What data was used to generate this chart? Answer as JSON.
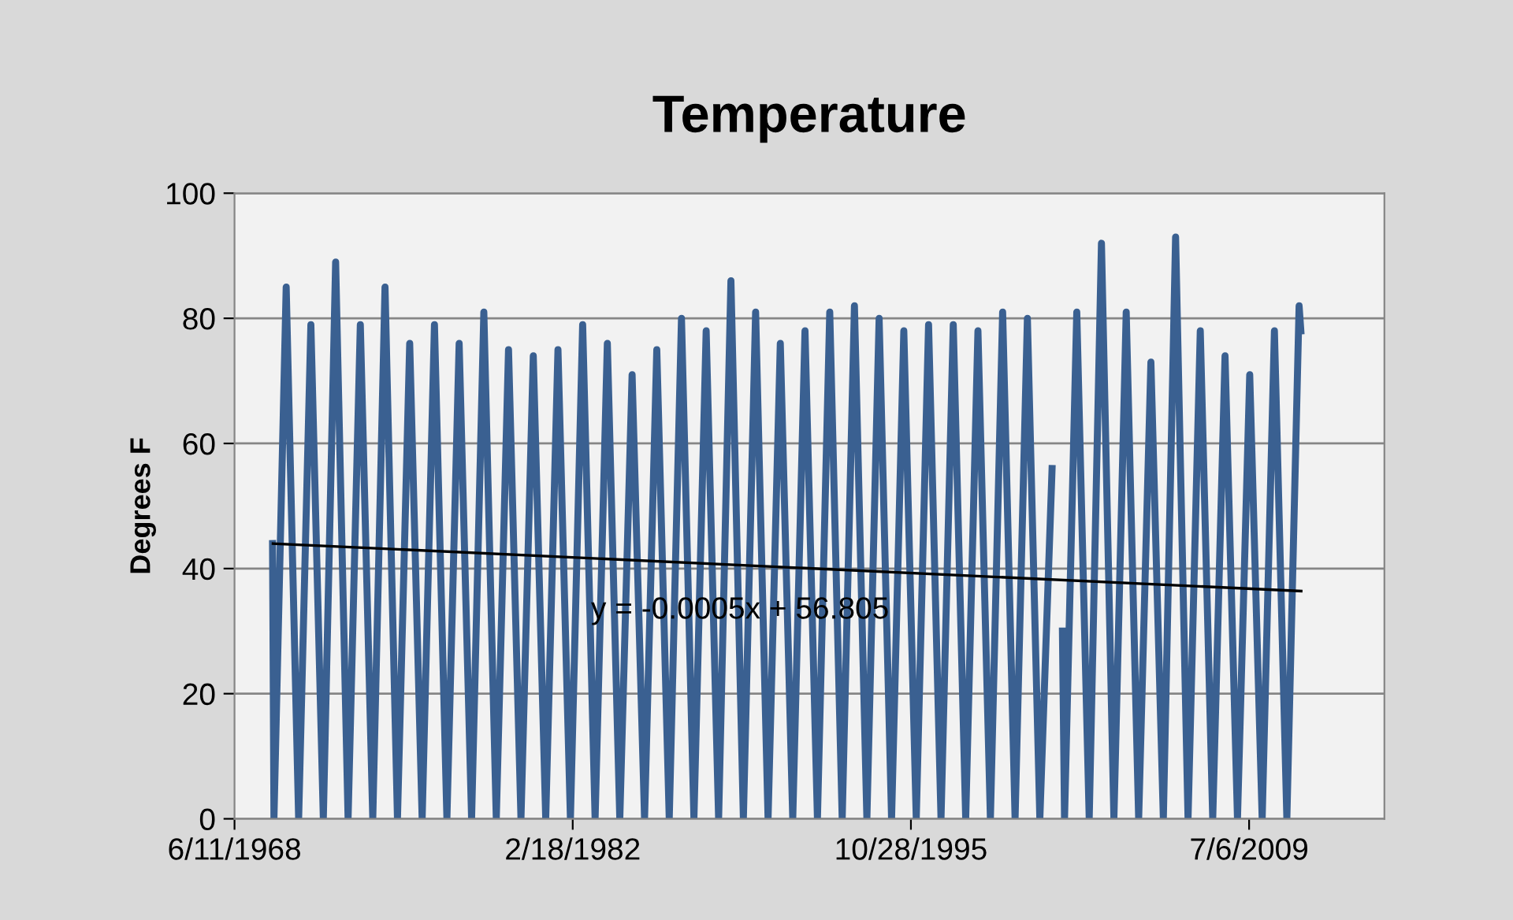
{
  "chart_data": {
    "type": "line",
    "title": "Temperature",
    "ylabel": "Degrees F",
    "xlim": [
      "1968-06-11",
      "2014-12-27"
    ],
    "xticks": [
      {
        "value": "1968-06-11",
        "label": "6/11/1968"
      },
      {
        "value": "1982-02-18",
        "label": "2/18/1982"
      },
      {
        "value": "1995-10-28",
        "label": "10/28/1995"
      },
      {
        "value": "2009-07-06",
        "label": "7/6/2009"
      }
    ],
    "ylim": [
      0,
      100
    ],
    "yticks": [
      0,
      20,
      40,
      60,
      80,
      100
    ],
    "grid": "y",
    "legend": false,
    "marker": "none",
    "line_style": "solid",
    "series": [
      {
        "color": "#3a6091",
        "x": [
          "1969-12-25",
          "1970-01-15",
          "1970-07-15",
          "1971-01-15",
          "1971-07-15",
          "1972-01-15",
          "1972-07-15",
          "1973-01-15",
          "1973-07-15",
          "1974-01-15",
          "1974-07-15",
          "1975-01-15",
          "1975-07-15",
          "1976-01-15",
          "1976-07-15",
          "1977-01-15",
          "1977-07-15",
          "1978-01-15",
          "1978-07-15",
          "1979-01-15",
          "1979-07-15",
          "1980-01-15",
          "1980-07-15",
          "1981-01-15",
          "1981-07-15",
          "1982-01-15",
          "1982-07-15",
          "1983-01-15",
          "1983-07-15",
          "1984-01-15",
          "1984-07-15",
          "1985-01-15",
          "1985-07-15",
          "1986-01-15",
          "1986-07-15",
          "1987-01-15",
          "1987-07-15",
          "1988-01-15",
          "1988-07-15",
          "1989-01-15",
          "1989-07-15",
          "1990-01-15",
          "1990-07-15",
          "1991-01-15",
          "1991-07-15",
          "1992-01-15",
          "1992-07-15",
          "1993-01-15",
          "1993-07-15",
          "1994-01-15",
          "1994-07-15",
          "1995-01-15",
          "1995-07-15",
          "1996-01-15",
          "1996-07-15",
          "1997-01-15",
          "1997-07-15",
          "1998-01-15",
          "1998-07-15",
          "1999-01-15",
          "1999-07-15",
          "2000-01-15",
          "2000-07-15",
          "2001-01-15",
          "2001-07-15",
          "2001-09-30",
          "2001-12-15",
          "2002-01-15",
          "2002-07-15",
          "2003-01-15",
          "2003-07-15",
          "2004-01-15",
          "2004-07-15",
          "2005-01-15",
          "2005-07-15",
          "2006-01-15",
          "2006-07-15",
          "2007-01-15",
          "2007-07-15",
          "2008-01-15",
          "2008-07-15",
          "2009-01-15",
          "2009-07-15",
          "2010-01-15",
          "2010-07-15",
          "2011-01-15",
          "2011-07-15",
          "2011-08-10"
        ],
        "values": [
          44,
          0,
          85,
          0,
          79,
          0,
          89,
          0,
          79,
          0,
          85,
          0,
          76,
          0,
          79,
          0,
          76,
          0,
          81,
          0,
          75,
          0,
          74,
          0,
          75,
          0,
          79,
          0,
          76,
          0,
          71,
          0,
          75,
          0,
          80,
          0,
          78,
          0,
          86,
          0,
          81,
          0,
          76,
          0,
          78,
          0,
          81,
          0,
          82,
          0,
          80,
          0,
          78,
          0,
          79,
          0,
          79,
          0,
          78,
          0,
          81,
          0,
          80,
          0,
          56,
          null,
          30,
          0,
          81,
          0,
          92,
          0,
          81,
          0,
          73,
          0,
          93,
          0,
          78,
          0,
          74,
          0,
          71,
          0,
          78,
          0,
          82,
          78
        ]
      },
      {
        "type": "line",
        "color": "#000000",
        "x": [
          "1970-01-01",
          "2011-08-15"
        ],
        "values": [
          44.0,
          36.4
        ]
      }
    ],
    "annotations": [
      "y = -0.0005x + 56.805"
    ]
  }
}
